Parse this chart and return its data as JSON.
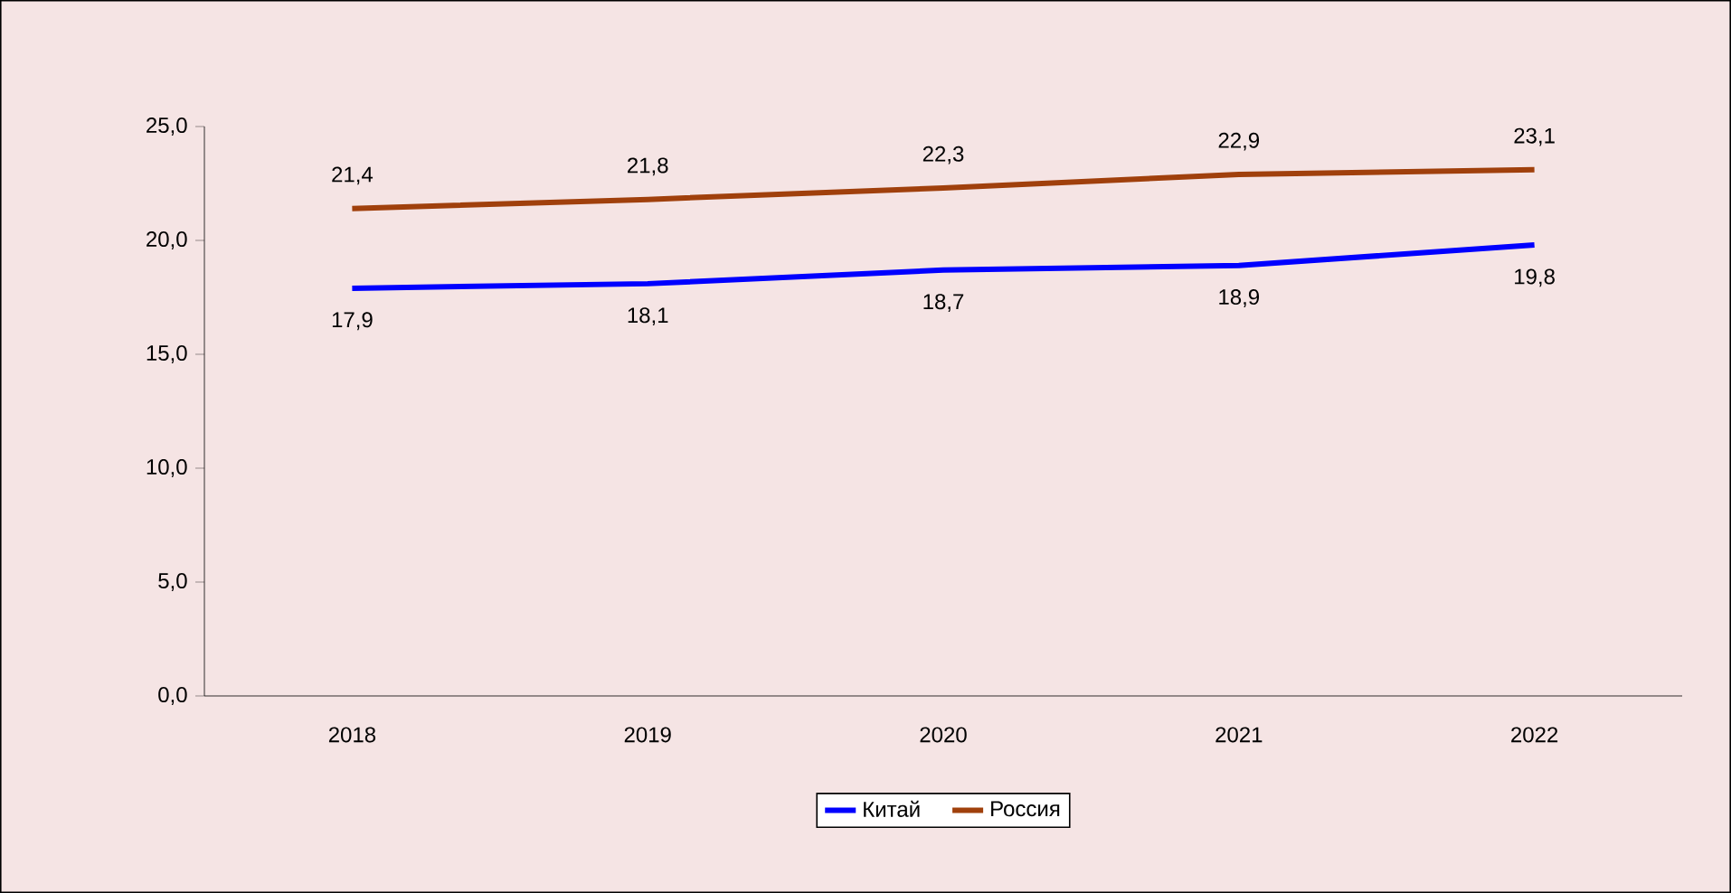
{
  "chart_data": {
    "type": "line",
    "categories": [
      "2018",
      "2019",
      "2020",
      "2021",
      "2022"
    ],
    "series": [
      {
        "name": "Китай",
        "color": "#0000ff",
        "values": [
          17.9,
          18.1,
          18.7,
          18.9,
          19.8
        ],
        "value_labels": [
          "17,9",
          "18,1",
          "18,7",
          "18,9",
          "19,8"
        ]
      },
      {
        "name": "Россия",
        "color": "#a0400c",
        "values": [
          21.4,
          21.8,
          22.3,
          22.9,
          23.1
        ],
        "value_labels": [
          "21,4",
          "21,8",
          "22,3",
          "22,9",
          "23,1"
        ]
      }
    ],
    "ylim": [
      0,
      25
    ],
    "yticks": [
      {
        "value": 0,
        "label": "0,0"
      },
      {
        "value": 5,
        "label": "5,0"
      },
      {
        "value": 10,
        "label": "10,0"
      },
      {
        "value": 15,
        "label": "15,0"
      },
      {
        "value": 20,
        "label": "20,0"
      },
      {
        "value": 25,
        "label": "25,0"
      }
    ],
    "grid": false,
    "legend": "bottom",
    "marker": "none",
    "line_style": "solid"
  }
}
